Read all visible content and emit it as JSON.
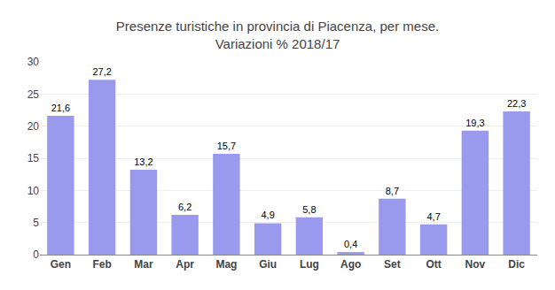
{
  "chart_data": {
    "type": "bar",
    "title": "Presenze turistiche in provincia di Piacenza, per mese.\nVariazioni % 2018/17",
    "categories": [
      "Gen",
      "Feb",
      "Mar",
      "Apr",
      "Mag",
      "Giu",
      "Lug",
      "Ago",
      "Set",
      "Ott",
      "Nov",
      "Dic"
    ],
    "values": [
      21.6,
      27.2,
      13.2,
      6.2,
      15.7,
      4.9,
      5.8,
      0.4,
      8.7,
      4.7,
      19.3,
      22.3
    ],
    "value_labels": [
      "21,6",
      "27,2",
      "13,2",
      "6,2",
      "15,7",
      "4,9",
      "5,8",
      "0,4",
      "8,7",
      "4,7",
      "19,3",
      "22,3"
    ],
    "data_labels": true,
    "color": "#9999ee",
    "ylim": [
      0,
      30
    ],
    "yticks": [
      0,
      5,
      10,
      15,
      20,
      25,
      30
    ],
    "grid": true
  }
}
